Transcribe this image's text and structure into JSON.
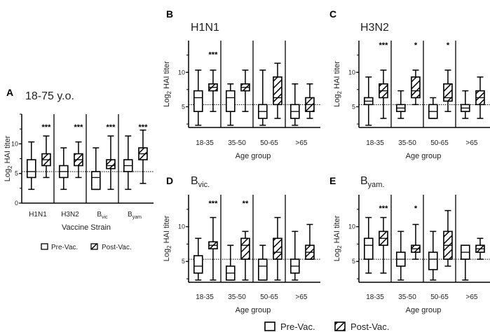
{
  "legend": {
    "pre_label": "Pre-Vac.",
    "post_label": "Post-Vac."
  },
  "colors": {
    "ink": "#000000",
    "box_fill": "#ffffff",
    "reference_line": "#000000"
  },
  "chart_data": [
    {
      "panel": "A",
      "type": "box",
      "title": {
        "main": "18-75 y.o.",
        "sub": ""
      },
      "xlabel": "Vaccine Strain",
      "ylabel": {
        "main": "Log",
        "sub": "2",
        "rest": " HAI titer"
      },
      "ylim": [
        0,
        15
      ],
      "yticks": [
        0,
        5,
        10
      ],
      "reference_line": 5.32,
      "categories": [
        {
          "main": "H1N1",
          "sub": ""
        },
        {
          "main": "H3N2",
          "sub": ""
        },
        {
          "main": "B",
          "sub": "vic"
        },
        {
          "main": "B",
          "sub": "yam"
        }
      ],
      "box_order": [
        "min",
        "q1",
        "median",
        "q3",
        "max"
      ],
      "series": [
        {
          "name": "Pre-Vac.",
          "boxes": [
            [
              2.32,
              4.32,
              5.32,
              7.32,
              10.32
            ],
            [
              2.32,
              4.32,
              5.32,
              6.32,
              9.32
            ],
            [
              2.32,
              2.32,
              4.32,
              5.32,
              9.32
            ],
            [
              2.32,
              5.32,
              6.32,
              7.32,
              11.32
            ]
          ]
        },
        {
          "name": "Post-Vac.",
          "boxes": [
            [
              4.32,
              6.32,
              7.32,
              8.32,
              11.32
            ],
            [
              4.32,
              6.32,
              7.32,
              8.32,
              10.32
            ],
            [
              2.32,
              5.82,
              6.32,
              7.32,
              11.32
            ],
            [
              3.32,
              7.32,
              8.32,
              9.32,
              12.32
            ]
          ]
        }
      ],
      "significance": [
        "***",
        "***",
        "***",
        "***"
      ]
    },
    {
      "panel": "B",
      "type": "box",
      "title": {
        "main": "H1N1",
        "sub": ""
      },
      "xlabel": "Age group",
      "ylabel": {
        "main": "Log",
        "sub": "2",
        "rest": " HAI titer"
      },
      "ylim": [
        2,
        14.6
      ],
      "yticks": [
        5,
        10
      ],
      "reference_line": 5.32,
      "categories": [
        {
          "main": "18-35",
          "sub": ""
        },
        {
          "main": "35-50",
          "sub": ""
        },
        {
          "main": "50-65",
          "sub": ""
        },
        {
          "main": ">65",
          "sub": ""
        }
      ],
      "box_order": [
        "min",
        "q1",
        "median",
        "q3",
        "max"
      ],
      "series": [
        {
          "name": "Pre-Vac.",
          "boxes": [
            [
              2.32,
              4.32,
              6.32,
              7.32,
              10.32
            ],
            [
              2.32,
              4.32,
              6.32,
              7.32,
              8.32
            ],
            [
              2.32,
              3.32,
              4.32,
              5.32,
              10.32
            ],
            [
              2.32,
              3.32,
              4.32,
              5.32,
              8.32
            ]
          ]
        },
        {
          "name": "Post-Vac.",
          "boxes": [
            [
              4.32,
              7.32,
              7.82,
              8.32,
              10.32
            ],
            [
              4.32,
              7.32,
              7.82,
              8.32,
              10.32
            ],
            [
              3.32,
              5.32,
              6.32,
              9.32,
              11.32
            ],
            [
              3.32,
              4.32,
              5.32,
              6.32,
              8.32
            ]
          ]
        }
      ],
      "significance": [
        "***",
        "",
        "",
        ""
      ]
    },
    {
      "panel": "C",
      "type": "box",
      "title": {
        "main": "H3N2",
        "sub": ""
      },
      "xlabel": "Age group",
      "ylabel": {
        "main": "Log",
        "sub": "2",
        "rest": " HAI titer"
      },
      "ylim": [
        2,
        14.6
      ],
      "yticks": [
        5,
        10
      ],
      "reference_line": 5.32,
      "categories": [
        {
          "main": "18-35",
          "sub": ""
        },
        {
          "main": "35-50",
          "sub": ""
        },
        {
          "main": "50-65",
          "sub": ""
        },
        {
          "main": ">65",
          "sub": ""
        }
      ],
      "box_order": [
        "min",
        "q1",
        "median",
        "q3",
        "max"
      ],
      "series": [
        {
          "name": "Pre-Vac.",
          "boxes": [
            [
              2.32,
              5.32,
              5.82,
              6.32,
              9.32
            ],
            [
              3.32,
              4.32,
              4.82,
              5.32,
              7.32
            ],
            [
              3.32,
              3.32,
              4.32,
              5.32,
              6.32
            ],
            [
              3.32,
              4.32,
              4.82,
              5.32,
              7.32
            ]
          ]
        },
        {
          "name": "Post-Vac.",
          "boxes": [
            [
              3.32,
              6.32,
              7.32,
              8.32,
              10.32
            ],
            [
              5.32,
              6.32,
              7.32,
              9.32,
              10.32
            ],
            [
              4.32,
              5.82,
              6.32,
              8.32,
              10.32
            ],
            [
              3.32,
              5.32,
              6.32,
              7.32,
              9.32
            ]
          ]
        }
      ],
      "significance": [
        "***",
        "*",
        "*",
        ""
      ]
    },
    {
      "panel": "D",
      "type": "box",
      "title": {
        "main": "B",
        "sub": "vic."
      },
      "xlabel": "Age group",
      "ylabel": {
        "main": "Log",
        "sub": "2",
        "rest": " HAI titer"
      },
      "ylim": [
        2,
        14.6
      ],
      "yticks": [
        5,
        10
      ],
      "reference_line": 5.32,
      "categories": [
        {
          "main": "18-35",
          "sub": ""
        },
        {
          "main": "35-50",
          "sub": ""
        },
        {
          "main": "50-65",
          "sub": ""
        },
        {
          "main": ">65",
          "sub": ""
        }
      ],
      "box_order": [
        "min",
        "q1",
        "median",
        "q3",
        "max"
      ],
      "series": [
        {
          "name": "Pre-Vac.",
          "boxes": [
            [
              2.32,
              3.32,
              4.32,
              5.82,
              8.32
            ],
            [
              2.32,
              2.32,
              3.32,
              4.32,
              7.32
            ],
            [
              2.32,
              2.32,
              4.32,
              5.32,
              7.32
            ],
            [
              2.32,
              3.32,
              4.32,
              5.32,
              9.32
            ]
          ]
        },
        {
          "name": "Post-Vac.",
          "boxes": [
            [
              2.32,
              6.82,
              7.32,
              7.82,
              11.32
            ],
            [
              2.32,
              5.32,
              7.32,
              8.32,
              9.32
            ],
            [
              2.32,
              5.32,
              6.32,
              8.32,
              11.32
            ],
            [
              5.32,
              5.32,
              6.32,
              7.32,
              10.32
            ]
          ]
        }
      ],
      "significance": [
        "***",
        "**",
        "",
        ""
      ]
    },
    {
      "panel": "E",
      "type": "box",
      "title": {
        "main": "B",
        "sub": "yam."
      },
      "xlabel": "Age group",
      "ylabel": {
        "main": "Log",
        "sub": "2",
        "rest": " HAI titer"
      },
      "ylim": [
        2,
        14.6
      ],
      "yticks": [
        5,
        10
      ],
      "reference_line": 5.32,
      "categories": [
        {
          "main": "18-35",
          "sub": ""
        },
        {
          "main": "35-50",
          "sub": ""
        },
        {
          "main": "50-65",
          "sub": ""
        },
        {
          "main": ">65",
          "sub": ""
        }
      ],
      "box_order": [
        "min",
        "q1",
        "median",
        "q3",
        "max"
      ],
      "series": [
        {
          "name": "Pre-Vac.",
          "boxes": [
            [
              3.32,
              5.32,
              7.32,
              8.32,
              11.32
            ],
            [
              2.32,
              4.32,
              5.32,
              6.32,
              9.32
            ],
            [
              2.32,
              3.82,
              5.32,
              6.32,
              9.32
            ],
            [
              2.32,
              5.32,
              6.32,
              7.32,
              7.32
            ]
          ]
        },
        {
          "name": "Post-Vac.",
          "boxes": [
            [
              3.32,
              7.32,
              8.32,
              9.32,
              11.32
            ],
            [
              5.32,
              6.32,
              6.82,
              7.32,
              10.32
            ],
            [
              4.32,
              5.32,
              7.32,
              9.32,
              12.32
            ],
            [
              5.32,
              6.32,
              6.82,
              7.32,
              8.32
            ]
          ]
        }
      ],
      "significance": [
        "***",
        "*",
        "",
        ""
      ]
    }
  ]
}
